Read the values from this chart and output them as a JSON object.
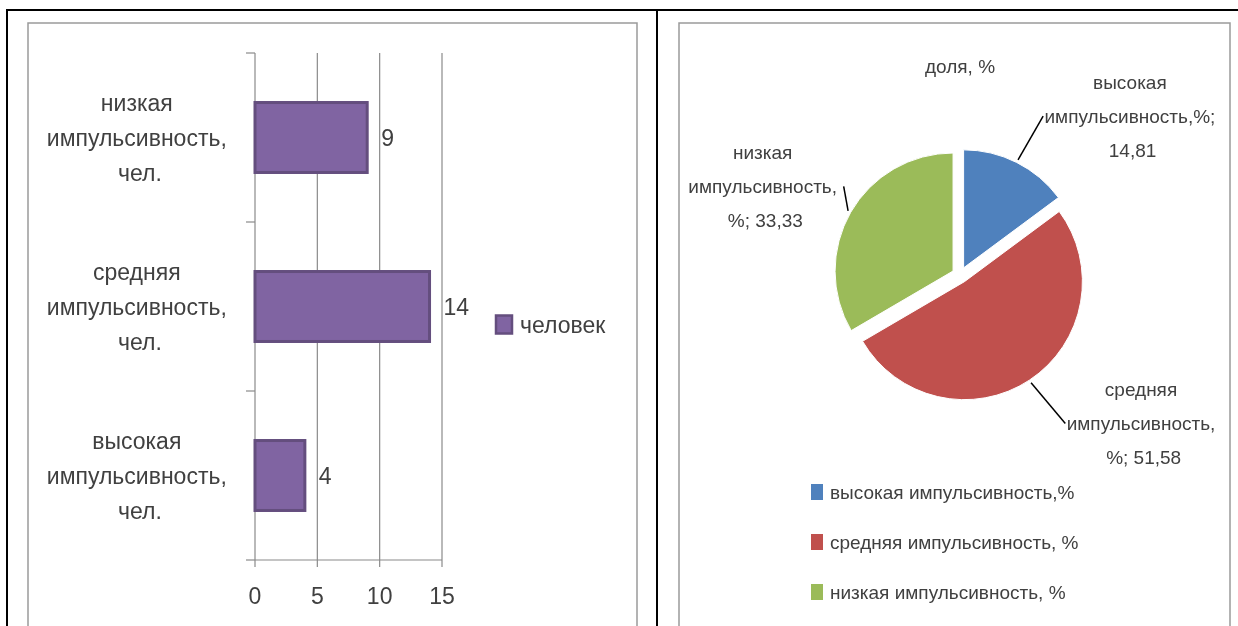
{
  "chart_data": [
    {
      "type": "bar",
      "orientation": "horizontal",
      "categories": [
        "низкая импульсивность, чел.",
        "средняя импульсивность, чел.",
        "высокая импульсивность, чел."
      ],
      "series": [
        {
          "name": "человек",
          "color": "#8064a2",
          "values": [
            9,
            14,
            4
          ]
        }
      ],
      "xlim": [
        0,
        15
      ],
      "xticks": [
        0,
        5,
        10,
        15
      ],
      "grid": "x",
      "legend": "right",
      "data_labels": true
    },
    {
      "type": "pie",
      "title": "доля, %",
      "categories": [
        "высокая импульсивность,%",
        "средняя импульсивность, %",
        "низкая импульсивность, %"
      ],
      "values": [
        14.81,
        51.58,
        33.33
      ],
      "colors": [
        "#4f81bd",
        "#c0504d",
        "#9bbb59"
      ],
      "value_labels": [
        "высокая импульсивность,%; 14,81",
        "средняя импульсивность, %; 51,58",
        "низкая импульсивность, %; 33,33"
      ],
      "legend": "bottom"
    }
  ]
}
